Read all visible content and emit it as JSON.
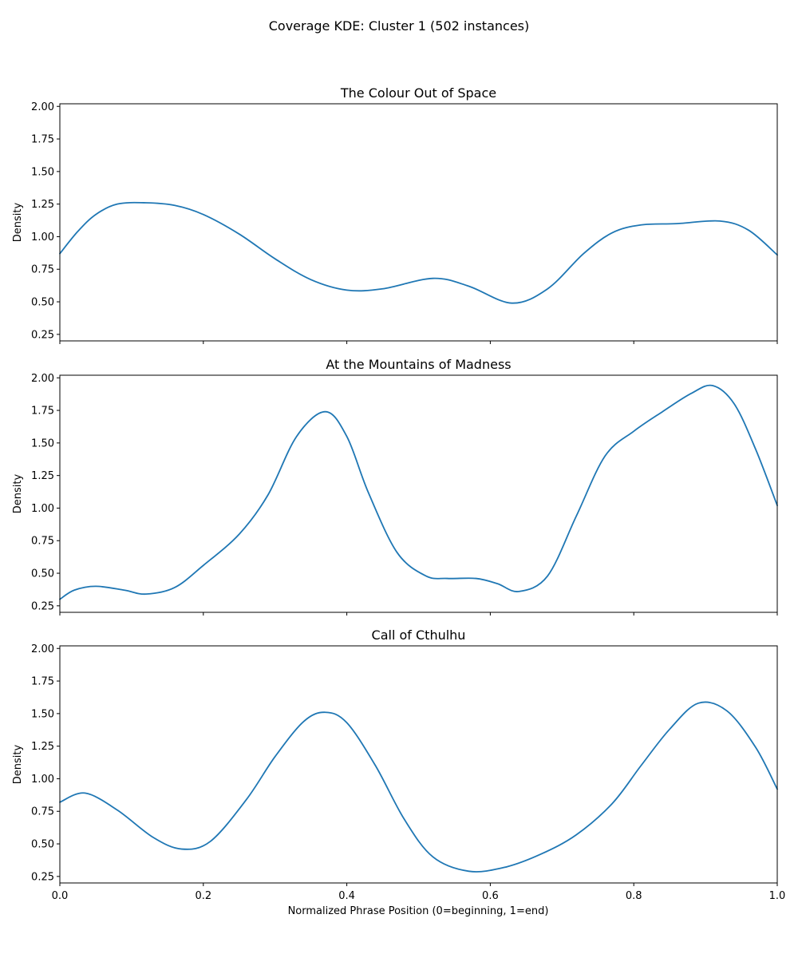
{
  "chart_data": {
    "type": "line",
    "title": "Coverage KDE: Cluster 1 (502 instances)",
    "xlabel": "Normalized Phrase Position (0=beginning, 1=end)",
    "ylabel": "Density",
    "xlim": [
      0,
      1
    ],
    "ylim": [
      0.2,
      2.02
    ],
    "x_ticks": [
      "0.0",
      "0.2",
      "0.4",
      "0.6",
      "0.8",
      "1.0"
    ],
    "y_ticks": [
      "0.25",
      "0.50",
      "0.75",
      "1.00",
      "1.25",
      "1.50",
      "1.75",
      "2.00"
    ],
    "sharex": true,
    "grid": false,
    "line_color": "#1f77b4",
    "panels": [
      {
        "title": "The Colour Out of Space",
        "x": [
          0.0,
          0.025,
          0.05,
          0.08,
          0.12,
          0.16,
          0.2,
          0.25,
          0.3,
          0.35,
          0.4,
          0.45,
          0.52,
          0.57,
          0.63,
          0.68,
          0.73,
          0.77,
          0.81,
          0.86,
          0.92,
          0.96,
          1.0
        ],
        "y": [
          0.87,
          1.04,
          1.17,
          1.25,
          1.26,
          1.24,
          1.17,
          1.02,
          0.83,
          0.67,
          0.59,
          0.6,
          0.68,
          0.62,
          0.49,
          0.6,
          0.87,
          1.03,
          1.09,
          1.1,
          1.12,
          1.05,
          0.86
        ]
      },
      {
        "title": "At the Mountains of Madness",
        "x": [
          0.0,
          0.02,
          0.05,
          0.09,
          0.12,
          0.16,
          0.2,
          0.25,
          0.29,
          0.33,
          0.37,
          0.4,
          0.43,
          0.47,
          0.51,
          0.54,
          0.58,
          0.61,
          0.64,
          0.68,
          0.72,
          0.76,
          0.8,
          0.84,
          0.88,
          0.91,
          0.94,
          0.97,
          1.0
        ],
        "y": [
          0.3,
          0.37,
          0.4,
          0.37,
          0.34,
          0.39,
          0.56,
          0.8,
          1.1,
          1.55,
          1.74,
          1.55,
          1.12,
          0.66,
          0.48,
          0.46,
          0.46,
          0.42,
          0.36,
          0.48,
          0.94,
          1.4,
          1.59,
          1.74,
          1.88,
          1.94,
          1.8,
          1.45,
          1.02
        ]
      },
      {
        "title": "Call of Cthulhu",
        "x": [
          0.0,
          0.035,
          0.08,
          0.13,
          0.17,
          0.21,
          0.26,
          0.3,
          0.34,
          0.37,
          0.4,
          0.44,
          0.48,
          0.52,
          0.57,
          0.62,
          0.67,
          0.72,
          0.77,
          0.81,
          0.85,
          0.89,
          0.93,
          0.97,
          1.0
        ],
        "y": [
          0.82,
          0.89,
          0.76,
          0.55,
          0.46,
          0.52,
          0.84,
          1.17,
          1.44,
          1.51,
          1.43,
          1.1,
          0.69,
          0.4,
          0.29,
          0.32,
          0.42,
          0.57,
          0.81,
          1.1,
          1.38,
          1.58,
          1.52,
          1.24,
          0.92
        ]
      }
    ]
  }
}
